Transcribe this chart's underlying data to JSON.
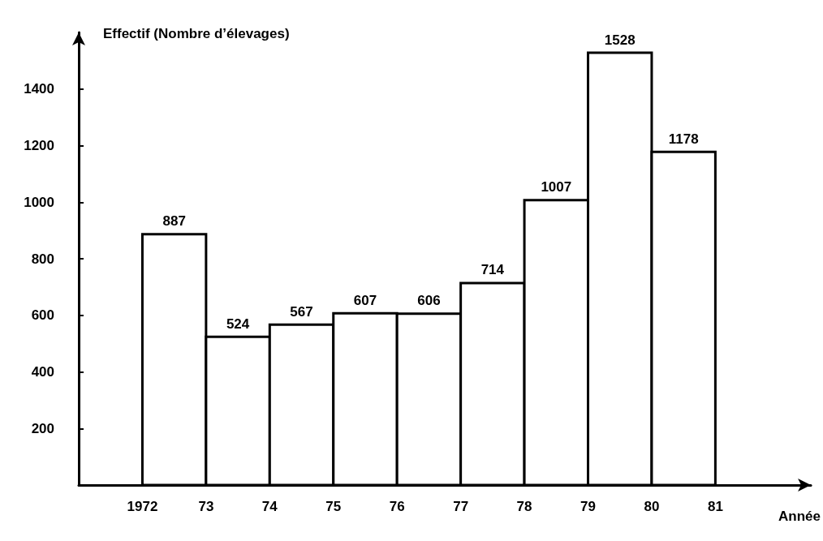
{
  "chart_data": {
    "type": "histogram",
    "ylabel": "Effectif (Nombre d’élevages)",
    "xlabel": "Année",
    "bins": [
      1972,
      1973,
      1974,
      1975,
      1976,
      1977,
      1978,
      1979,
      1980,
      1981
    ],
    "values": [
      887,
      524,
      567,
      607,
      606,
      714,
      1007,
      1528,
      1178
    ],
    "color": "#ffffff",
    "data_labels": true,
    "grid": false,
    "xlim": [
      1971,
      1982.5
    ],
    "xticks": [
      {
        "value": 1972,
        "label": "1972"
      },
      {
        "value": 1973,
        "label": "73"
      },
      {
        "value": 1974,
        "label": "74"
      },
      {
        "value": 1975,
        "label": "75"
      },
      {
        "value": 1976,
        "label": "76"
      },
      {
        "value": 1977,
        "label": "77"
      },
      {
        "value": 1978,
        "label": "78"
      },
      {
        "value": 1979,
        "label": "79"
      },
      {
        "value": 1980,
        "label": "80"
      },
      {
        "value": 1981,
        "label": "81"
      }
    ],
    "ylim": [
      0,
      1600
    ],
    "yticks": [
      200,
      400,
      600,
      800,
      1000,
      1200,
      1400
    ]
  }
}
